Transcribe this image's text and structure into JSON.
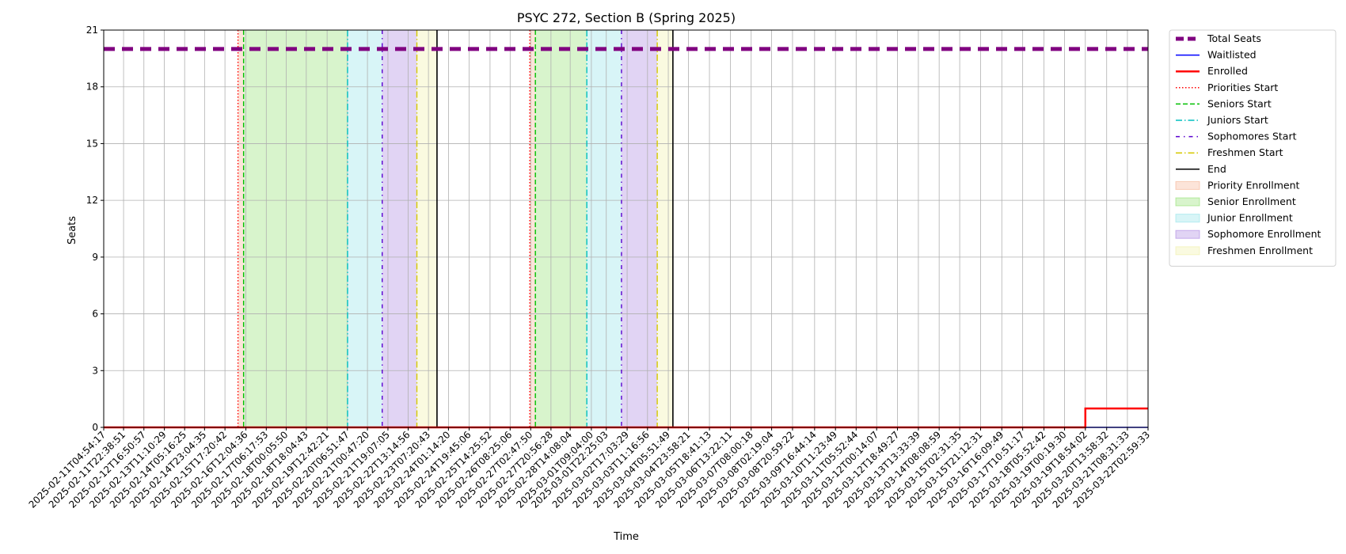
{
  "chart_data": {
    "type": "line",
    "title": "PSYC 272, Section B (Spring 2025)",
    "xlabel": "Time",
    "ylabel": "Seats",
    "ylim": [
      0,
      21
    ],
    "yticks": [
      0,
      3,
      6,
      9,
      12,
      15,
      18,
      21
    ],
    "grid": true,
    "legend_position": "outside-top-right",
    "x_tick_labels": [
      "2025-02-11T04:54:17",
      "2025-02-11T22:38:51",
      "2025-02-12T16:50:57",
      "2025-02-13T11:10:29",
      "2025-02-14T05:16:25",
      "2025-02-14T23:04:35",
      "2025-02-15T17:20:42",
      "2025-02-16T12:04:36",
      "2025-02-17T06:17:53",
      "2025-02-18T00:05:50",
      "2025-02-18T18:04:43",
      "2025-02-19T12:42:21",
      "2025-02-20T06:51:47",
      "2025-02-21T00:47:20",
      "2025-02-21T19:07:05",
      "2025-02-22T13:14:56",
      "2025-02-23T07:20:43",
      "2025-02-24T01:14:20",
      "2025-02-24T19:45:06",
      "2025-02-25T14:25:52",
      "2025-02-26T08:25:06",
      "2025-02-27T02:47:50",
      "2025-02-27T20:56:28",
      "2025-02-28T14:08:04",
      "2025-03-01T09:04:00",
      "2025-03-01T22:25:03",
      "2025-03-02T17:03:29",
      "2025-03-03T11:16:56",
      "2025-03-04T05:51:49",
      "2025-03-04T23:58:21",
      "2025-03-05T18:41:13",
      "2025-03-06T13:22:11",
      "2025-03-07T08:00:18",
      "2025-03-08T02:19:04",
      "2025-03-08T20:59:22",
      "2025-03-09T16:44:14",
      "2025-03-10T11:23:49",
      "2025-03-11T05:52:44",
      "2025-03-12T00:14:07",
      "2025-03-12T18:49:27",
      "2025-03-13T13:33:39",
      "2025-03-14T08:08:59",
      "2025-03-15T02:31:35",
      "2025-03-15T21:12:31",
      "2025-03-16T16:09:49",
      "2025-03-17T10:51:17",
      "2025-03-18T05:52:42",
      "2025-03-19T00:19:30",
      "2025-03-19T18:54:02",
      "2025-03-20T13:58:32",
      "2025-03-21T08:31:33",
      "2025-03-22T02:59:33"
    ],
    "series": [
      {
        "name": "Total Seats",
        "color": "#800080",
        "style": "dashed-thick",
        "x_range": [
          "2025-02-11T04:54:17",
          "2025-03-22T02:59:33"
        ],
        "values": [
          20,
          20
        ]
      },
      {
        "name": "Waitlisted",
        "color": "#0000ff",
        "style": "solid",
        "x_range": [
          "2025-02-11T04:54:17",
          "2025-03-22T02:59:33"
        ],
        "values": [
          0,
          0
        ]
      },
      {
        "name": "Enrolled",
        "color": "#ff0000",
        "style": "solid-thick",
        "points": [
          {
            "x": "2025-02-11T04:54:17",
            "y": 0
          },
          {
            "x": "2025-03-19T18:54:02",
            "y": 0
          },
          {
            "x": "2025-03-19T18:54:02",
            "y": 1
          },
          {
            "x": "2025-03-22T02:59:33",
            "y": 1
          }
        ]
      }
    ],
    "vertical_lines": [
      {
        "name": "Priorities Start",
        "color": "#ff0000",
        "style": "dotted",
        "x": [
          "2025-02-16T05:00:00",
          "2025-02-27T02:00:00"
        ]
      },
      {
        "name": "Seniors Start",
        "color": "#00c000",
        "style": "dashed",
        "x": [
          "2025-02-16T10:00:00",
          "2025-02-27T07:00:00"
        ]
      },
      {
        "name": "Juniors Start",
        "color": "#00bfbf",
        "style": "dashdot",
        "x": [
          "2025-02-20T07:00:00",
          "2025-03-01T05:00:00"
        ]
      },
      {
        "name": "Sophomores Start",
        "color": "#5a00d0",
        "style": "dashdot-sparse",
        "x": [
          "2025-02-21T14:00:00",
          "2025-03-02T12:00:00"
        ]
      },
      {
        "name": "Freshmen Start",
        "color": "#d6c800",
        "style": "dashdot",
        "x": [
          "2025-02-22T21:00:00",
          "2025-03-03T20:00:00"
        ]
      },
      {
        "name": "End",
        "color": "#000000",
        "style": "solid",
        "x": [
          "2025-02-23T15:00:00",
          "2025-03-04T10:00:00"
        ]
      }
    ],
    "shaded_regions": [
      {
        "name": "Priority Enrollment",
        "color": "#f4a582",
        "ranges": [
          [
            "2025-02-16T05:00:00",
            "2025-02-16T10:00:00"
          ],
          [
            "2025-02-27T02:00:00",
            "2025-02-27T07:00:00"
          ]
        ]
      },
      {
        "name": "Senior Enrollment",
        "color": "#7ed957",
        "ranges": [
          [
            "2025-02-16T10:00:00",
            "2025-02-20T07:00:00"
          ],
          [
            "2025-02-27T07:00:00",
            "2025-03-01T05:00:00"
          ]
        ]
      },
      {
        "name": "Junior Enrollment",
        "color": "#7fdfe6",
        "ranges": [
          [
            "2025-02-20T07:00:00",
            "2025-02-21T14:00:00"
          ],
          [
            "2025-03-01T05:00:00",
            "2025-03-02T12:00:00"
          ]
        ]
      },
      {
        "name": "Sophomore Enrollment",
        "color": "#9b6fdb",
        "ranges": [
          [
            "2025-02-21T14:00:00",
            "2025-02-22T21:00:00"
          ],
          [
            "2025-03-02T12:00:00",
            "2025-03-03T20:00:00"
          ]
        ]
      },
      {
        "name": "Freshmen Enrollment",
        "color": "#eeee99",
        "ranges": [
          [
            "2025-02-22T21:00:00",
            "2025-02-23T15:00:00"
          ],
          [
            "2025-03-03T20:00:00",
            "2025-03-04T10:00:00"
          ]
        ]
      }
    ],
    "legend": [
      {
        "label": "Total Seats",
        "kind": "line",
        "color": "#800080",
        "style": "dashed-thick"
      },
      {
        "label": "Waitlisted",
        "kind": "line",
        "color": "#0000ff",
        "style": "solid"
      },
      {
        "label": "Enrolled",
        "kind": "line",
        "color": "#ff0000",
        "style": "solid-thick"
      },
      {
        "label": "Priorities Start",
        "kind": "line",
        "color": "#ff0000",
        "style": "dotted"
      },
      {
        "label": "Seniors Start",
        "kind": "line",
        "color": "#00c000",
        "style": "dashed"
      },
      {
        "label": "Juniors Start",
        "kind": "line",
        "color": "#00bfbf",
        "style": "dashdot"
      },
      {
        "label": "Sophomores Start",
        "kind": "line",
        "color": "#5a00d0",
        "style": "dashdot-sparse"
      },
      {
        "label": "Freshmen Start",
        "kind": "line",
        "color": "#d6c800",
        "style": "dashdot"
      },
      {
        "label": "End",
        "kind": "line",
        "color": "#000000",
        "style": "solid"
      },
      {
        "label": "Priority Enrollment",
        "kind": "patch",
        "color": "#f4a582"
      },
      {
        "label": "Senior Enrollment",
        "kind": "patch",
        "color": "#7ed957"
      },
      {
        "label": "Junior Enrollment",
        "kind": "patch",
        "color": "#7fdfe6"
      },
      {
        "label": "Sophomore Enrollment",
        "kind": "patch",
        "color": "#9b6fdb"
      },
      {
        "label": "Freshmen Enrollment",
        "kind": "patch",
        "color": "#eeee99"
      }
    ]
  }
}
